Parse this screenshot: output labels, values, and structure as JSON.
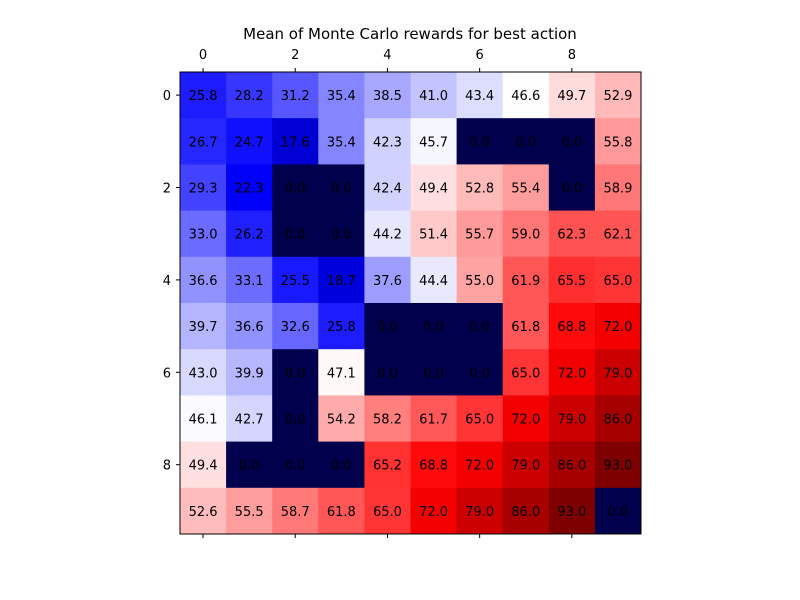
{
  "chart_data": {
    "type": "heatmap",
    "title": "Mean of Monte Carlo rewards for best action",
    "xlabel": "",
    "ylabel": "",
    "x_tick_position": "top-and-bottom",
    "x_ticks": [
      0,
      2,
      4,
      6,
      8
    ],
    "y_ticks": [
      0,
      2,
      4,
      6,
      8
    ],
    "colormap": "seismic",
    "color_range": [
      0,
      93
    ],
    "rows": 10,
    "cols": 10,
    "values": [
      [
        25.8,
        28.2,
        31.2,
        35.4,
        38.5,
        41.0,
        43.4,
        46.6,
        49.7,
        52.9
      ],
      [
        26.7,
        24.7,
        17.6,
        35.4,
        42.3,
        45.7,
        0.0,
        0.0,
        0.0,
        55.8
      ],
      [
        29.3,
        22.3,
        0.0,
        0.0,
        42.4,
        49.4,
        52.8,
        55.4,
        0.0,
        58.9
      ],
      [
        33.0,
        26.2,
        0.0,
        0.0,
        44.2,
        51.4,
        55.7,
        59.0,
        62.3,
        62.1
      ],
      [
        36.6,
        33.1,
        25.5,
        18.7,
        37.6,
        44.4,
        55.0,
        61.9,
        65.5,
        65.0
      ],
      [
        39.7,
        36.6,
        32.6,
        25.8,
        0.0,
        0.0,
        0.0,
        61.8,
        68.8,
        72.0
      ],
      [
        43.0,
        39.9,
        0.0,
        47.1,
        0.0,
        0.0,
        0.0,
        65.0,
        72.0,
        79.0
      ],
      [
        46.1,
        42.7,
        0.0,
        54.2,
        58.2,
        61.7,
        65.0,
        72.0,
        79.0,
        86.0
      ],
      [
        49.4,
        0.0,
        0.0,
        0.0,
        65.2,
        68.8,
        72.0,
        79.0,
        86.0,
        93.0
      ],
      [
        52.6,
        55.5,
        58.7,
        61.8,
        65.0,
        72.0,
        79.0,
        86.0,
        93.0,
        0.0
      ]
    ]
  }
}
